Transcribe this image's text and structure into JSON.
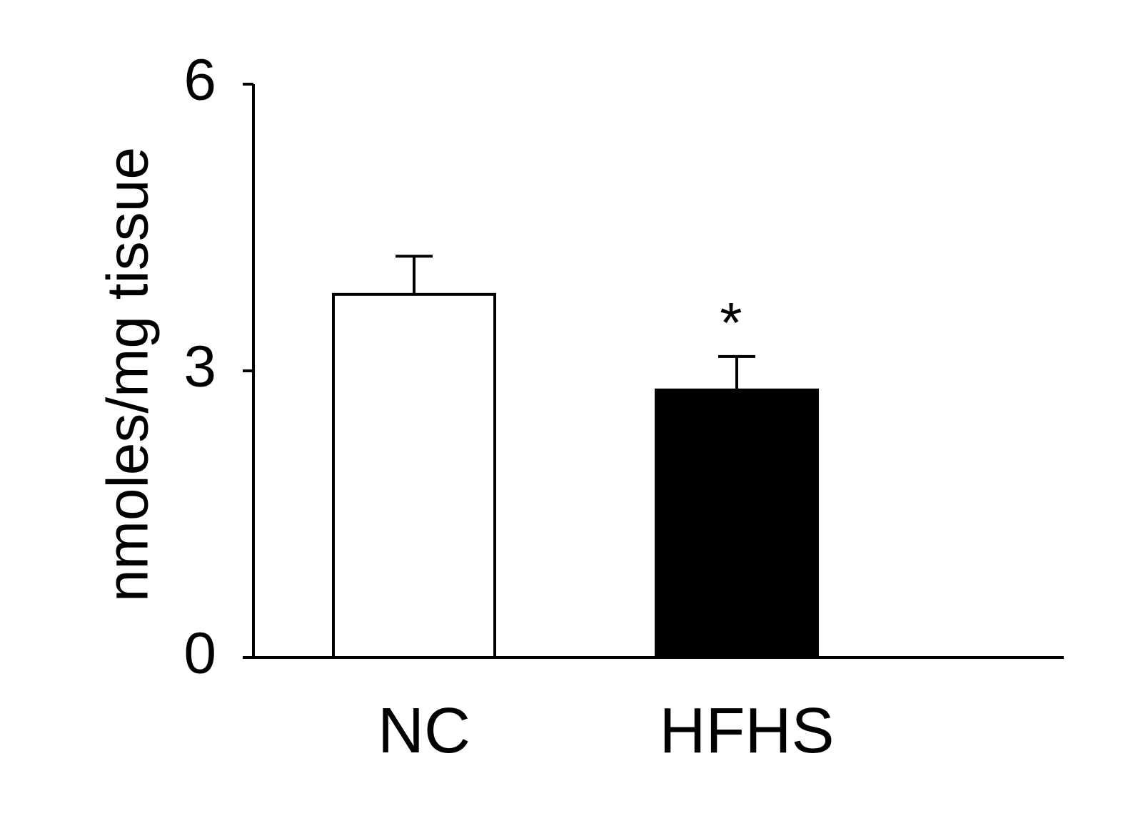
{
  "chart_data": {
    "type": "bar",
    "y_label": "nmoles/mg tissue",
    "categories": [
      "NC",
      "HFHS"
    ],
    "values": [
      3.8,
      2.8
    ],
    "errors": [
      0.4,
      0.35
    ],
    "colors": [
      "#ffffff",
      "#000000"
    ],
    "annotations": [
      null,
      "*"
    ],
    "ylim": [
      0,
      6
    ],
    "yticks": [
      0,
      3,
      6
    ],
    "grid": false
  }
}
